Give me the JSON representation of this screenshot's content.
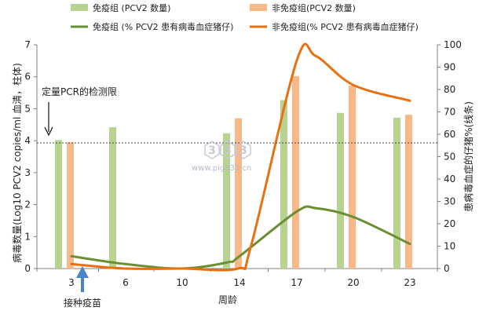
{
  "chart_data": {
    "type": "bar",
    "categories": [
      "3",
      "6",
      "10",
      "14",
      "17",
      "20",
      "23"
    ],
    "y_left": {
      "label": "病毒数量(Log10 PCV2 copies/ml 血清，柱体)",
      "range": [
        0,
        7
      ],
      "ticks": [
        "0",
        "1",
        "2",
        "3",
        "4",
        "5",
        "6",
        "7"
      ]
    },
    "y_right": {
      "label": "患病毒血症的仔猪%(线条)",
      "range": [
        0,
        100
      ],
      "ticks": [
        "0",
        "10",
        "20",
        "30",
        "40",
        "50",
        "60",
        "70",
        "80",
        "90",
        "100"
      ]
    },
    "xlabel": "周龄",
    "bar_series": [
      {
        "name": "免疫组 (PCV2 数量)",
        "color": "#b6d38f",
        "values": [
          4.02,
          4.42,
          null,
          4.23,
          5.27,
          4.87,
          4.72
        ]
      },
      {
        "name": "非免疫组(PCV2 数量)",
        "color": "#f8b98a",
        "values": [
          3.95,
          null,
          null,
          4.7,
          6.02,
          5.72,
          4.81
        ]
      }
    ],
    "line_series": [
      {
        "name": "免疫组 (% PCV2 患有病毒血症猪仔)",
        "color": "#6b8e33",
        "x": [
          3,
          6,
          10,
          13.2,
          14,
          17,
          18,
          20,
          23
        ],
        "y": [
          5.5,
          2,
          0,
          2.8,
          5.5,
          25.5,
          27,
          23,
          11
        ]
      },
      {
        "name": "非免疫组(% PCV2 患有病毒血症猪仔)",
        "color": "#e8700e",
        "x": [
          3,
          6,
          10,
          13.9,
          14.6,
          17,
          18,
          20,
          23
        ],
        "y": [
          2,
          0,
          0,
          0,
          10,
          93,
          95,
          82,
          75
        ]
      }
    ],
    "detection_limit": {
      "value": 3.93,
      "label": "定量PCR的检测限"
    },
    "vaccination": {
      "x": "3",
      "label": "接种疫苗"
    },
    "watermark": {
      "badge": [
        "3",
        "3",
        "3"
      ],
      "url": "www.pig333.cn"
    }
  }
}
